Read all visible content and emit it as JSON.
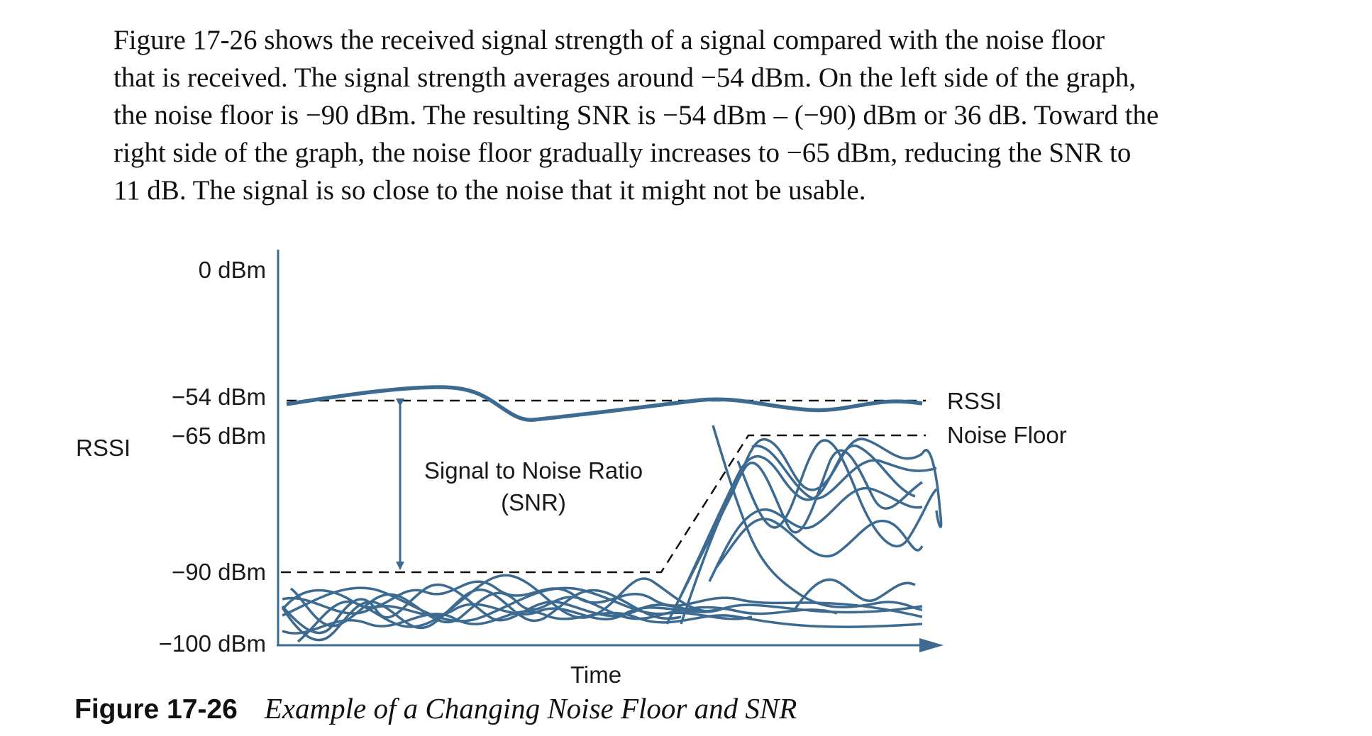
{
  "paragraph": {
    "lines": [
      "Figure 17-26 shows the received signal strength of a signal compared with the noise floor",
      "that is received. The signal strength averages around −54 dBm. On the left side of the graph,",
      "the noise floor is −90 dBm. The resulting SNR is −54 dBm – (−90) dBm or 36 dB. Toward the",
      "right side of the graph, the noise floor gradually increases to −65 dBm, reducing the SNR to",
      "11 dB. The signal is so close to the noise that it might not be usable."
    ]
  },
  "figure": {
    "caption_label": "Figure 17-26",
    "caption_title": "Example of a Changing Noise Floor and SNR",
    "y_axis_title": "RSSI",
    "x_axis_title": "Time",
    "y_ticks": [
      {
        "value": 0,
        "label": "0 dBm"
      },
      {
        "value": -54,
        "label": "−54 dBm"
      },
      {
        "value": -65,
        "label": "−65 dBm"
      },
      {
        "value": -90,
        "label": "−90 dBm"
      },
      {
        "value": -100,
        "label": "−100 dBm"
      }
    ],
    "rssi_label": "RSSI",
    "noise_floor_label": "Noise Floor",
    "snr_label_line1": "Signal to Noise Ratio",
    "snr_label_line2": "(SNR)",
    "line_color": "#3d6a90"
  },
  "chart_data": {
    "type": "line",
    "xlabel": "Time",
    "ylabel": "RSSI",
    "ylim": [
      -100,
      0
    ],
    "y_unit": "dBm",
    "rssi_average": -54,
    "noise_floor_start": -90,
    "noise_floor_end": -65,
    "snr_start_db": 36,
    "snr_end_db": 11,
    "annotations": [
      "RSSI",
      "Noise Floor",
      "Signal to Noise Ratio (SNR)"
    ]
  }
}
